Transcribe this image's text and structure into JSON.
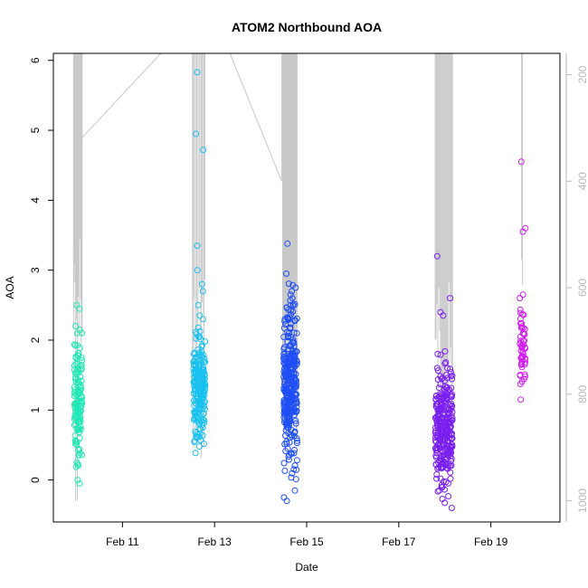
{
  "chart_data": {
    "type": "scatter",
    "title": "ATOM2 Northbound AOA",
    "xlabel": "Date",
    "ylabel": "AOA",
    "x_axis": {
      "type": "date",
      "range": [
        "2016-02-09 12:00",
        "2016-02-20 12:00"
      ],
      "ticks": [
        "2016-02-11",
        "2016-02-13",
        "2016-02-15",
        "2016-02-17",
        "2016-02-19"
      ],
      "tick_labels": [
        "Feb 11",
        "Feb 13",
        "Feb 15",
        "Feb 17",
        "Feb 19"
      ]
    },
    "y_axis": {
      "range": [
        -0.6,
        6.1
      ],
      "ticks": [
        0,
        1,
        2,
        3,
        4,
        5,
        6
      ]
    },
    "y2_axis": {
      "range": [
        1040,
        160
      ],
      "ticks": [
        200,
        400,
        600,
        800,
        1000
      ],
      "color": "#b8b8b8",
      "orientation": "reversed"
    },
    "grid": false,
    "legend": "none",
    "color_scale": "rainbow by time (cyan-green → blue → violet → magenta)",
    "series": [
      {
        "clusters": [
          {
            "start": "2016-02-09 23:00",
            "end": "2016-02-10 03:00",
            "n": 130,
            "mean": 1.05,
            "sd": 0.5,
            "min": -0.05,
            "max": 2.5,
            "color": "#1fe8b4",
            "notable": [
              2.5,
              2.45,
              2.2,
              2.1,
              -0.05,
              0.0
            ]
          },
          {
            "start": "2016-02-12 13:00",
            "end": "2016-02-12 19:00",
            "n": 230,
            "mean": 1.3,
            "sd": 0.38,
            "min": 0.25,
            "max": 5.8,
            "color": "#19c1f0",
            "notable": [
              5.83,
              4.95,
              4.72,
              3.35,
              3.0,
              2.8,
              2.7,
              2.5,
              2.35,
              2.3
            ]
          },
          {
            "start": "2016-02-14 12:00",
            "end": "2016-02-14 19:00",
            "n": 330,
            "mean": 1.35,
            "sd": 0.55,
            "min": -0.3,
            "max": 3.4,
            "color": "#1f4ef5",
            "notable": [
              3.38,
              2.95,
              2.75,
              2.7,
              2.65,
              2.6,
              -0.3,
              -0.25
            ]
          },
          {
            "start": "2016-02-17 19:00",
            "end": "2016-02-18 04:00",
            "n": 300,
            "mean": 0.75,
            "sd": 0.42,
            "min": -0.4,
            "max": 3.2,
            "color": "#7a1ff0",
            "notable": [
              3.2,
              2.6,
              2.4,
              2.35,
              1.8,
              1.6,
              -0.4
            ]
          },
          {
            "start": "2016-02-19 15:00",
            "end": "2016-02-19 18:00",
            "n": 60,
            "mean": 1.9,
            "sd": 0.25,
            "min": 1.15,
            "max": 4.55,
            "color": "#d21ff0",
            "notable": [
              4.55,
              3.6,
              3.55,
              2.65,
              2.6,
              1.15
            ]
          }
        ]
      }
    ],
    "gray_line": {
      "color": "#c8c8c8",
      "description": "secondary-axis pressure trace",
      "segments": [
        [
          [
            "2016-02-09 23:30",
            1000
          ],
          [
            "2016-02-09 23:30",
            160
          ],
          [
            "2016-02-10 00:30",
            160
          ],
          [
            "2016-02-10 00:30",
            1000
          ]
        ],
        [
          [
            "2016-02-10 02:30",
            760
          ],
          [
            "2016-02-10 02:30",
            320
          ],
          [
            "2016-02-11 20:00",
            160
          ]
        ],
        [
          [
            "2016-02-12 13:00",
            900
          ],
          [
            "2016-02-12 13:00",
            160
          ]
        ],
        [
          [
            "2016-02-12 14:00",
            900
          ],
          [
            "2016-02-12 14:00",
            160
          ]
        ],
        [
          [
            "2016-02-12 17:00",
            920
          ],
          [
            "2016-02-12 17:00",
            160
          ]
        ],
        [
          [
            "2016-02-12 18:30",
            900
          ],
          [
            "2016-02-12 18:30",
            160
          ]
        ],
        [
          [
            "2016-02-13 08:00",
            160
          ],
          [
            "2016-02-14 11:00",
            400
          ],
          [
            "2016-02-14 11:00",
            160
          ]
        ]
      ],
      "dense_spikes": [
        {
          "start": "2016-02-09 22:30",
          "end": "2016-02-10 03:00",
          "count": 12,
          "top": 160,
          "bottom": 780
        },
        {
          "start": "2016-02-12 12:30",
          "end": "2016-02-12 19:00",
          "count": 10,
          "top": 160,
          "bottom": 880
        },
        {
          "start": "2016-02-14 11:30",
          "end": "2016-02-14 19:00",
          "count": 40,
          "top": 160,
          "bottom": 900
        },
        {
          "start": "2016-02-17 19:00",
          "end": "2016-02-18 04:00",
          "count": 20,
          "top": 160,
          "bottom": 900
        },
        {
          "start": "2016-02-19 16:00",
          "end": "2016-02-19 16:30",
          "count": 2,
          "top": 160,
          "bottom": 760
        }
      ]
    }
  }
}
